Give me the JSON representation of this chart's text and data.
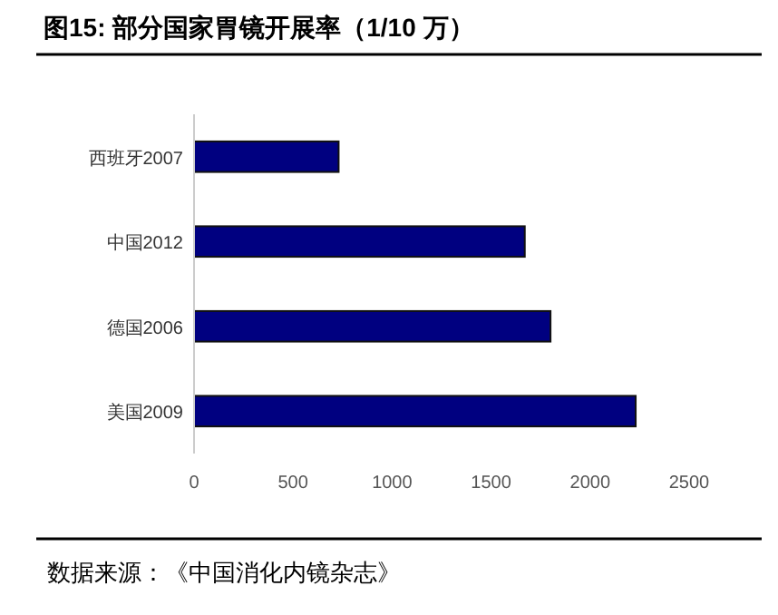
{
  "chart_data": {
    "type": "bar",
    "orientation": "horizontal",
    "title": "图15:  部分国家胃镜开展率（1/10 万）",
    "categories": [
      "西班牙2007",
      "中国2012",
      "德国2006",
      "美国2009"
    ],
    "values": [
      730,
      1670,
      1800,
      2230
    ],
    "color": "#000080",
    "xlim": [
      0,
      2500
    ],
    "xticks": [
      0,
      500,
      1000,
      1500,
      2000,
      2500
    ],
    "grid": false,
    "annotations": [
      "数据来源：《中国消化内镜杂志》"
    ]
  }
}
